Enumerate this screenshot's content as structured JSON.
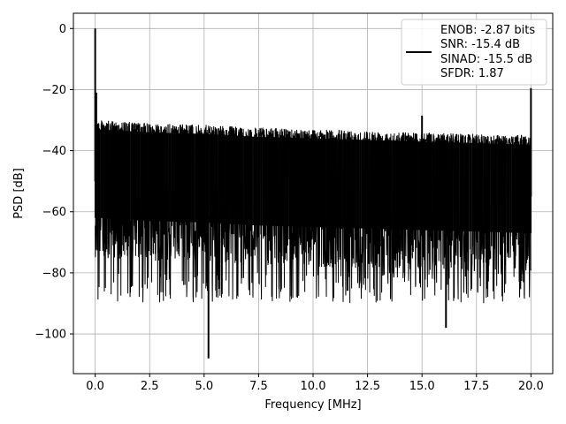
{
  "chart_data": {
    "type": "line",
    "title": "",
    "xlabel": "Frequency [MHz]",
    "ylabel": "PSD [dB]",
    "xlim": [
      -1,
      21
    ],
    "ylim": [
      -113,
      5
    ],
    "xticks": [
      0,
      2.5,
      5,
      7.5,
      10,
      12.5,
      15,
      17.5,
      20
    ],
    "xtick_labels": [
      "0.0",
      "2.5",
      "5.0",
      "7.5",
      "10.0",
      "12.5",
      "15.0",
      "17.5",
      "20.0"
    ],
    "yticks": [
      0,
      -20,
      -40,
      -60,
      -80,
      -100
    ],
    "ytick_labels": [
      "0",
      "−20",
      "−40",
      "−60",
      "−80",
      "−100"
    ],
    "grid": true,
    "legend_position": "top-right",
    "series": [
      {
        "color": "#000000",
        "spikes": [
          {
            "x": 0.0,
            "y": 0.0
          },
          {
            "x": 0.05,
            "y": -21
          },
          {
            "x": 5.2,
            "y": -108
          },
          {
            "x": 15.0,
            "y": -28.5
          },
          {
            "x": 16.1,
            "y": -98
          },
          {
            "x": 20.0,
            "y": -19.5
          }
        ],
        "upper_envelope": {
          "x": [
            0.1,
            2.5,
            5,
            7.5,
            10,
            12.5,
            15,
            17.5,
            19.9
          ],
          "y": [
            -30,
            -31,
            -31.5,
            -32.5,
            -33,
            -33.5,
            -34,
            -34.5,
            -35
          ]
        },
        "lower_typical": -80
      }
    ],
    "legend": {
      "lines": [
        "ENOB: -2.87 bits",
        "SNR: -15.4 dB",
        "SINAD: -15.5 dB",
        "SFDR: 1.87"
      ]
    }
  }
}
